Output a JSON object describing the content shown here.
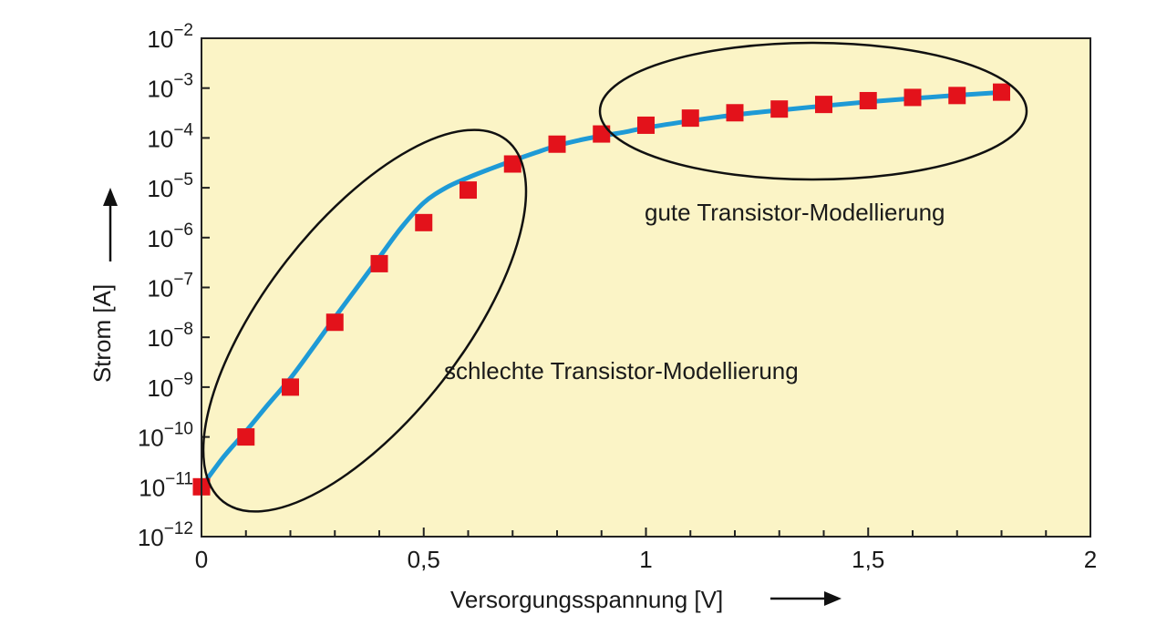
{
  "chart_data": {
    "type": "scatter",
    "xlabel": "Versorgungsspannung [V]",
    "ylabel": "Strom [A]",
    "xlim": [
      0,
      2
    ],
    "ylim_log10": [
      -12,
      -2
    ],
    "y_scale": "log",
    "x_ticks": [
      {
        "value": 0,
        "label": "0"
      },
      {
        "value": 0.5,
        "label": "0,5"
      },
      {
        "value": 1,
        "label": "1"
      },
      {
        "value": 1.5,
        "label": "1,5"
      },
      {
        "value": 2,
        "label": "2"
      }
    ],
    "y_ticks": [
      {
        "exp": -2,
        "base": "10",
        "sup": "−2"
      },
      {
        "exp": -3,
        "base": "10",
        "sup": "−3"
      },
      {
        "exp": -4,
        "base": "10",
        "sup": "−4"
      },
      {
        "exp": -5,
        "base": "10",
        "sup": "−5"
      },
      {
        "exp": -6,
        "base": "10",
        "sup": "−6"
      },
      {
        "exp": -7,
        "base": "10",
        "sup": "−7"
      },
      {
        "exp": -8,
        "base": "10",
        "sup": "−8"
      },
      {
        "exp": -9,
        "base": "10",
        "sup": "−9"
      },
      {
        "exp": -10,
        "base": "10",
        "sup": "−10"
      },
      {
        "exp": -11,
        "base": "10",
        "sup": "−11"
      },
      {
        "exp": -12,
        "base": "10",
        "sup": "−12"
      }
    ],
    "series": [
      {
        "style": "markers",
        "color": "#e3121b",
        "marker": "square",
        "x": [
          0,
          0.1,
          0.2,
          0.3,
          0.4,
          0.5,
          0.6,
          0.7,
          0.8,
          0.9,
          1.0,
          1.1,
          1.2,
          1.3,
          1.4,
          1.5,
          1.6,
          1.7,
          1.8
        ],
        "y": [
          1e-11,
          1e-10,
          1e-09,
          2e-08,
          3e-07,
          2e-06,
          9e-06,
          3e-05,
          7.5e-05,
          0.00012,
          0.00018,
          0.00025,
          0.00032,
          0.00038,
          0.00047,
          0.00056,
          0.00065,
          0.00071,
          0.00083
        ]
      },
      {
        "style": "line",
        "color": "#1e9ad6",
        "x": [
          0,
          0.05,
          0.1,
          0.15,
          0.2,
          0.25,
          0.3,
          0.35,
          0.4,
          0.45,
          0.5,
          0.55,
          0.6,
          0.65,
          0.7,
          0.75,
          0.8,
          0.85,
          0.9,
          0.95,
          1.0,
          1.1,
          1.2,
          1.3,
          1.4,
          1.5,
          1.6,
          1.7,
          1.8
        ],
        "y": [
          1e-11,
          4e-11,
          1.3e-10,
          4.5e-10,
          1.5e-09,
          6e-09,
          2.5e-08,
          1e-07,
          4e-07,
          1.6e-06,
          5e-06,
          1e-05,
          1.6e-05,
          2.4e-05,
          3.5e-05,
          5e-05,
          7e-05,
          9e-05,
          0.00011,
          0.00013,
          0.00016,
          0.00022,
          0.00029,
          0.00036,
          0.00044,
          0.00053,
          0.00062,
          0.00072,
          0.00082
        ]
      }
    ],
    "annotations": [
      {
        "text": "schlechte Transistor-Modellierung"
      },
      {
        "text": "gute Transistor-Modellierung"
      }
    ],
    "colors": {
      "plot_background": "#fbf4c6",
      "frame": "#222222",
      "ellipse": "#111111"
    }
  }
}
